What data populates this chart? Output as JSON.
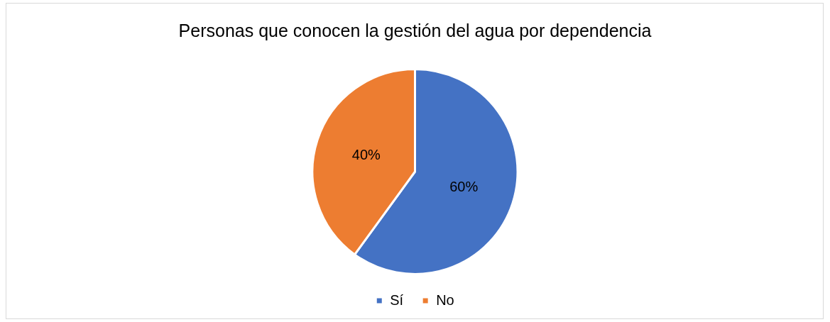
{
  "chart_data": {
    "type": "pie",
    "title": "Personas que conocen la gestión del agua por dependencia",
    "categories": [
      "Sí",
      "No"
    ],
    "values": [
      60,
      40
    ],
    "colors": [
      "#4472c4",
      "#ed7d31"
    ],
    "value_labels": [
      "60%",
      "40%"
    ],
    "legend": "bottom"
  }
}
